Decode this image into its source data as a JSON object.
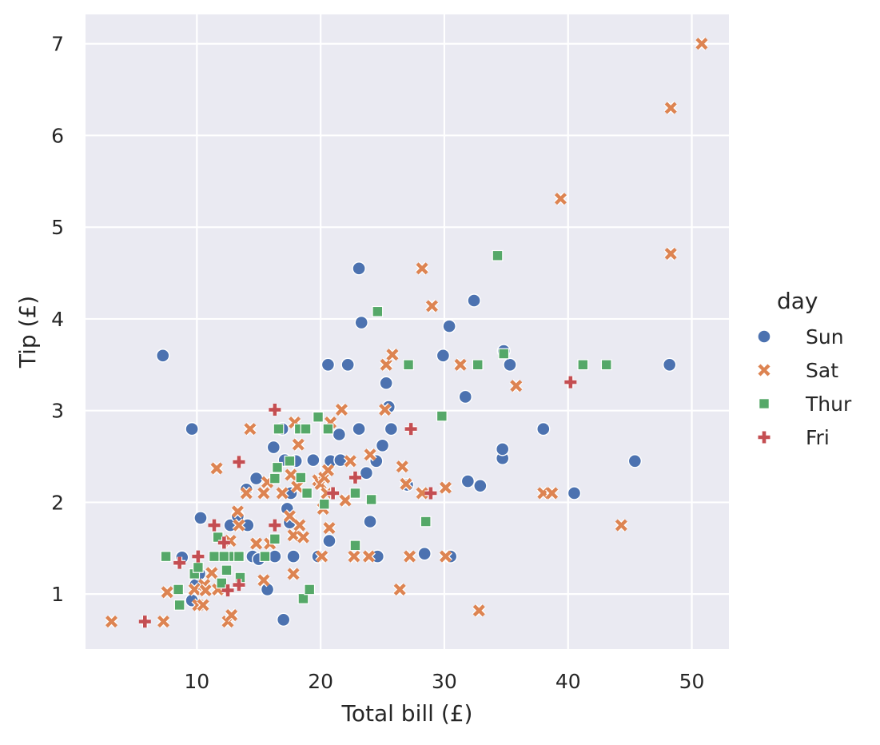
{
  "chart_data": {
    "type": "scatter",
    "xlabel": "Total bill (£)",
    "ylabel": "Tip (£)",
    "xlim": [
      1,
      53
    ],
    "ylim": [
      0.4,
      7.32
    ],
    "xticks": [
      "10",
      "20",
      "30",
      "40",
      "50"
    ],
    "yticks": [
      "1",
      "2",
      "3",
      "4",
      "5",
      "6",
      "7"
    ],
    "grid": true,
    "background": "#eaeaf2",
    "legend": {
      "title": "day",
      "placement": "right",
      "entries": [
        "Sun",
        "Sat",
        "Thur",
        "Fri"
      ]
    },
    "series": [
      {
        "name": "Sun",
        "marker": "circle",
        "color": "#4c72b0",
        "points": [
          [
            7.25,
            3.6
          ],
          [
            9.6,
            2.8
          ],
          [
            8.8,
            1.4
          ],
          [
            10.3,
            1.83
          ],
          [
            9.6,
            0.93
          ],
          [
            9.9,
            1.1
          ],
          [
            10.2,
            1.22
          ],
          [
            12.7,
            1.75
          ],
          [
            13.3,
            1.85
          ],
          [
            14,
            2.14
          ],
          [
            14.1,
            1.75
          ],
          [
            14.5,
            1.41
          ],
          [
            14.8,
            2.26
          ],
          [
            15,
            1.38
          ],
          [
            15.7,
            1.05
          ],
          [
            16.2,
            2.6
          ],
          [
            16.3,
            1.41
          ],
          [
            16.9,
            2.8
          ],
          [
            17,
            0.72
          ],
          [
            17.1,
            2.46
          ],
          [
            17.3,
            1.93
          ],
          [
            17.5,
            1.78
          ],
          [
            17.6,
            2.1
          ],
          [
            17.8,
            1.41
          ],
          [
            18,
            2.45
          ],
          [
            19.4,
            2.46
          ],
          [
            19.8,
            1.41
          ],
          [
            20.6,
            3.5
          ],
          [
            20.7,
            1.58
          ],
          [
            20.8,
            2.45
          ],
          [
            21.5,
            2.74
          ],
          [
            21.6,
            2.46
          ],
          [
            22.2,
            3.5
          ],
          [
            23.1,
            4.55
          ],
          [
            23.1,
            2.8
          ],
          [
            23.3,
            3.96
          ],
          [
            23.7,
            2.32
          ],
          [
            24,
            1.79
          ],
          [
            24.5,
            2.45
          ],
          [
            24.6,
            1.41
          ],
          [
            25,
            2.62
          ],
          [
            25.3,
            3.3
          ],
          [
            25.5,
            3.04
          ],
          [
            25.7,
            2.8
          ],
          [
            27,
            2.19
          ],
          [
            28.4,
            1.44
          ],
          [
            29.9,
            3.6
          ],
          [
            30.4,
            3.92
          ],
          [
            30.5,
            1.41
          ],
          [
            31.7,
            3.15
          ],
          [
            31.9,
            2.23
          ],
          [
            32.4,
            4.2
          ],
          [
            32.9,
            2.18
          ],
          [
            34.7,
            2.48
          ],
          [
            34.7,
            2.58
          ],
          [
            34.8,
            3.65
          ],
          [
            35.3,
            3.5
          ],
          [
            38,
            2.8
          ],
          [
            40.5,
            2.1
          ],
          [
            45.4,
            2.45
          ],
          [
            48.2,
            3.5
          ]
        ]
      },
      {
        "name": "Sat",
        "marker": "x",
        "color": "#dd8452",
        "points": [
          [
            3.1,
            0.7
          ],
          [
            7.3,
            0.7
          ],
          [
            7.6,
            1.02
          ],
          [
            9.8,
            1.05
          ],
          [
            10.1,
            0.88
          ],
          [
            10.5,
            0.88
          ],
          [
            10.6,
            1.1
          ],
          [
            10.7,
            1.04
          ],
          [
            11.2,
            1.23
          ],
          [
            11.6,
            2.37
          ],
          [
            11.7,
            1.05
          ],
          [
            12.5,
            0.7
          ],
          [
            12.7,
            1.58
          ],
          [
            12.8,
            0.77
          ],
          [
            13.3,
            1.9
          ],
          [
            13.4,
            1.75
          ],
          [
            14,
            2.1
          ],
          [
            14.3,
            2.8
          ],
          [
            14.8,
            1.55
          ],
          [
            15.4,
            2.1
          ],
          [
            15.4,
            1.15
          ],
          [
            15.7,
            2.22
          ],
          [
            15.9,
            1.55
          ],
          [
            16.9,
            2.1
          ],
          [
            17.5,
            1.85
          ],
          [
            17.6,
            2.3
          ],
          [
            17.8,
            1.64
          ],
          [
            17.8,
            1.22
          ],
          [
            17.9,
            2.87
          ],
          [
            18.1,
            2.17
          ],
          [
            18.2,
            2.63
          ],
          [
            18.3,
            1.75
          ],
          [
            18.6,
            1.62
          ],
          [
            19.8,
            2.24
          ],
          [
            20,
            2.2
          ],
          [
            20.1,
            1.41
          ],
          [
            20.2,
            1.93
          ],
          [
            20.3,
            2.27
          ],
          [
            20.5,
            2.1
          ],
          [
            20.6,
            2.35
          ],
          [
            20.7,
            1.72
          ],
          [
            20.8,
            2.87
          ],
          [
            21.7,
            3.01
          ],
          [
            22,
            2.02
          ],
          [
            22.4,
            2.45
          ],
          [
            22.7,
            1.41
          ],
          [
            23.9,
            1.41
          ],
          [
            24,
            2.52
          ],
          [
            25.2,
            3.01
          ],
          [
            25.3,
            3.5
          ],
          [
            25.8,
            3.61
          ],
          [
            26.4,
            1.05
          ],
          [
            26.6,
            2.39
          ],
          [
            26.9,
            2.2
          ],
          [
            27.2,
            1.41
          ],
          [
            28.2,
            2.1
          ],
          [
            28.2,
            4.55
          ],
          [
            29,
            4.14
          ],
          [
            30.1,
            2.16
          ],
          [
            30.1,
            1.41
          ],
          [
            31.3,
            3.5
          ],
          [
            32.8,
            0.82
          ],
          [
            35.8,
            3.27
          ],
          [
            38,
            2.1
          ],
          [
            38.7,
            2.1
          ],
          [
            39.4,
            5.31
          ],
          [
            44.3,
            1.75
          ],
          [
            48.3,
            6.3
          ],
          [
            48.3,
            4.71
          ],
          [
            50.8,
            7
          ]
        ]
      },
      {
        "name": "Thur",
        "marker": "square",
        "color": "#55a868",
        "points": [
          [
            7.5,
            1.41
          ],
          [
            8.5,
            1.05
          ],
          [
            8.6,
            0.88
          ],
          [
            9.8,
            1.22
          ],
          [
            10.1,
            1.29
          ],
          [
            11.4,
            1.41
          ],
          [
            11.7,
            1.62
          ],
          [
            12,
            1.12
          ],
          [
            12.2,
            1.41
          ],
          [
            12.4,
            1.26
          ],
          [
            13,
            1.41
          ],
          [
            13.4,
            1.41
          ],
          [
            13.5,
            1.18
          ],
          [
            15.5,
            1.41
          ],
          [
            16.3,
            2.26
          ],
          [
            16.3,
            1.6
          ],
          [
            16.5,
            2.38
          ],
          [
            16.6,
            2.8
          ],
          [
            17.5,
            2.45
          ],
          [
            18.3,
            2.8
          ],
          [
            18.4,
            2.27
          ],
          [
            18.6,
            0.95
          ],
          [
            18.8,
            2.8
          ],
          [
            18.9,
            2.1
          ],
          [
            19.1,
            1.05
          ],
          [
            19.8,
            2.93
          ],
          [
            20.3,
            1.98
          ],
          [
            20.6,
            2.8
          ],
          [
            22.8,
            2.1
          ],
          [
            22.8,
            1.53
          ],
          [
            24.1,
            2.03
          ],
          [
            24.6,
            4.08
          ],
          [
            27.1,
            3.5
          ],
          [
            28.5,
            1.79
          ],
          [
            29.8,
            2.94
          ],
          [
            32.7,
            3.5
          ],
          [
            34.3,
            4.69
          ],
          [
            34.8,
            3.62
          ],
          [
            41.2,
            3.5
          ],
          [
            43.1,
            3.5
          ]
        ]
      },
      {
        "name": "Fri",
        "marker": "plus",
        "color": "#c44e52",
        "points": [
          [
            5.8,
            0.7
          ],
          [
            8.6,
            1.34
          ],
          [
            10.1,
            1.41
          ],
          [
            11.4,
            1.75
          ],
          [
            12.2,
            1.56
          ],
          [
            12.5,
            1.04
          ],
          [
            13.4,
            2.44
          ],
          [
            13.4,
            1.1
          ],
          [
            16.3,
            3.01
          ],
          [
            16.3,
            1.75
          ],
          [
            21,
            2.1
          ],
          [
            22.8,
            2.27
          ],
          [
            27.3,
            2.8
          ],
          [
            28.9,
            2.1
          ],
          [
            40.2,
            3.31
          ]
        ]
      }
    ]
  }
}
